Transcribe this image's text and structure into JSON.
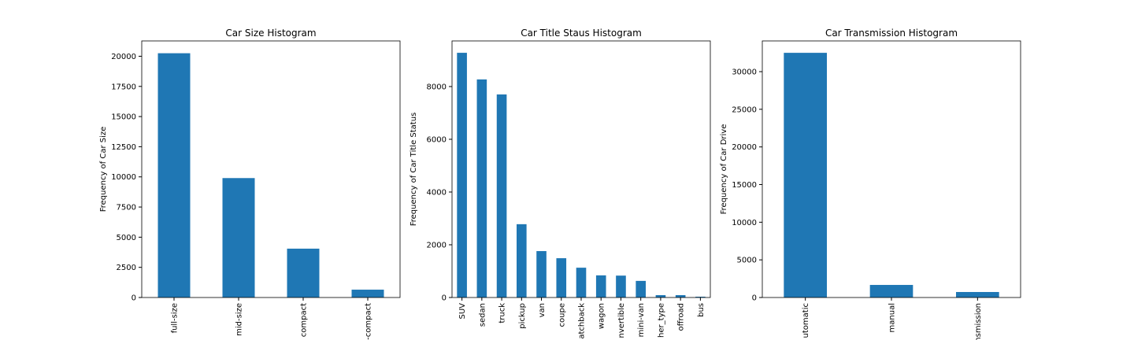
{
  "chart_data": [
    {
      "type": "bar",
      "title": "Car Size Histogram",
      "y_label": "Frequency of Car Size",
      "categories": [
        "full-size",
        "mid-size",
        "compact",
        "-compact"
      ],
      "values": [
        20250,
        9900,
        4050,
        650
      ],
      "color": "#1f77b4",
      "ylim": [
        0,
        21270
      ],
      "yticks": [
        0,
        2500,
        5000,
        7500,
        10000,
        12500,
        15000,
        17500,
        20000
      ]
    },
    {
      "type": "bar",
      "title": "Car Title Staus Histogram",
      "y_label": "Frequency of Car Title Status",
      "categories": [
        "SUV",
        "sedan",
        "truck",
        "pickup",
        "van",
        "coupe",
        "atchback",
        "wagon",
        "nvertible",
        "mini-van",
        "her_type",
        "offroad",
        "bus"
      ],
      "values": [
        9280,
        8270,
        7700,
        2780,
        1760,
        1490,
        1130,
        840,
        830,
        630,
        90,
        90,
        30
      ],
      "color": "#1f77b4",
      "ylim": [
        0,
        9730
      ],
      "yticks": [
        0,
        2000,
        4000,
        6000,
        8000
      ]
    },
    {
      "type": "bar",
      "title": "Car Transmission Histogram",
      "y_label": "Frequency of Car Drive",
      "categories": [
        "utomatic",
        "manual",
        "nsmission"
      ],
      "values": [
        32500,
        1670,
        730
      ],
      "color": "#1f77b4",
      "ylim": [
        0,
        34080
      ],
      "yticks": [
        0,
        5000,
        10000,
        15000,
        20000,
        25000,
        30000
      ]
    }
  ]
}
